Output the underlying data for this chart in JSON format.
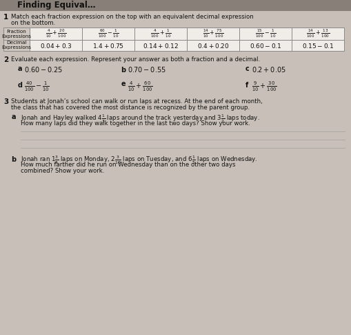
{
  "bg_color": "#c8c0b8",
  "banner_color": "#888078",
  "table_bg": "#e8e4e0",
  "table_border": "#888888",
  "label_bg": "#d0c8c0",
  "text_color": "#111111",
  "title": "Finding Equival…",
  "fraction_cells": [
    "$\\frac{4}{10}+\\frac{20}{100}$",
    "$\\frac{60}{100}-\\frac{1}{10}$",
    "$\\frac{4}{100}+\\frac{1}{10}$",
    "$\\frac{14}{10}+\\frac{75}{100}$",
    "$\\frac{15}{100}-\\frac{1}{10}$",
    "$\\frac{14}{100}+\\frac{13}{100}$"
  ],
  "decimal_cells": [
    "$0.04+0.3$",
    "$1.4+0.75$",
    "$0.14+0.12$",
    "$0.4+0.20$",
    "$0.60-0.1$",
    "$0.15-0.1$"
  ]
}
